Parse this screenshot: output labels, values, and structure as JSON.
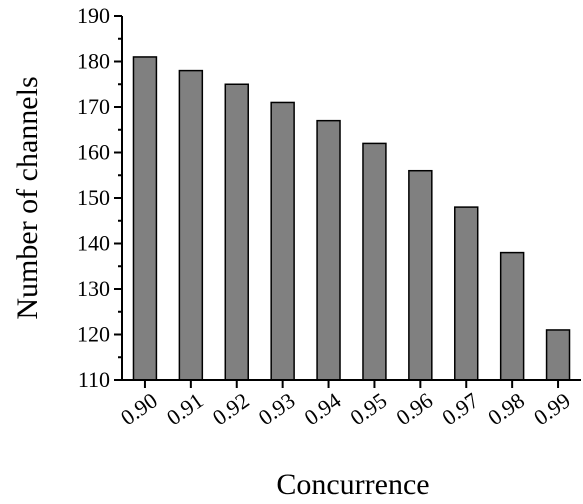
{
  "chart_data": {
    "type": "bar",
    "categories": [
      "0.90",
      "0.91",
      "0.92",
      "0.93",
      "0.94",
      "0.95",
      "0.96",
      "0.97",
      "0.98",
      "0.99"
    ],
    "values": [
      181,
      178,
      175,
      171,
      167,
      162,
      156,
      148,
      138,
      121
    ],
    "title": "",
    "xlabel": "Concurrence",
    "ylabel": "Number of channels",
    "ylim": [
      110,
      190
    ],
    "yticks": [
      110,
      120,
      130,
      140,
      150,
      160,
      170,
      180,
      190
    ],
    "grid": false,
    "colors": {
      "bar": "#808080",
      "edge": "#000000"
    }
  }
}
